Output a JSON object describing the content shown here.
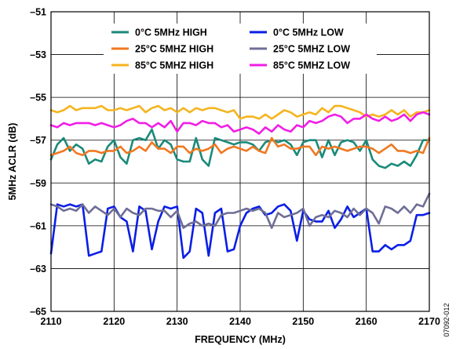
{
  "chart_data": {
    "type": "line",
    "title": "",
    "xlabel": "FREQUENCY (MHz)",
    "ylabel": "5MHz ACLR (dB)",
    "xlim": [
      2110,
      2170
    ],
    "ylim": [
      -65,
      -51
    ],
    "x_ticks": [
      2110,
      2120,
      2130,
      2140,
      2150,
      2160,
      2170
    ],
    "y_ticks": [
      -65,
      -63,
      -61,
      -59,
      -57,
      -55,
      -53,
      -51
    ],
    "x_tick_labels": [
      "2110",
      "2120",
      "2130",
      "2140",
      "2150",
      "2160",
      "2170"
    ],
    "y_tick_labels": [
      "–65",
      "–63",
      "–61",
      "–59",
      "–57",
      "–55",
      "–53",
      "–51"
    ],
    "grid": true,
    "legend_position": "top",
    "figure_id": "07092-012",
    "x": [
      2110,
      2111,
      2112,
      2113,
      2114,
      2115,
      2116,
      2117,
      2118,
      2119,
      2120,
      2121,
      2122,
      2123,
      2124,
      2125,
      2126,
      2127,
      2128,
      2129,
      2130,
      2131,
      2132,
      2133,
      2134,
      2135,
      2136,
      2137,
      2138,
      2139,
      2140,
      2141,
      2142,
      2143,
      2144,
      2145,
      2146,
      2147,
      2148,
      2149,
      2150,
      2151,
      2152,
      2153,
      2154,
      2155,
      2156,
      2157,
      2158,
      2159,
      2160,
      2161,
      2162,
      2163,
      2164,
      2165,
      2166,
      2167,
      2168,
      2169,
      2170
    ],
    "series": [
      {
        "name": "0°C 5MHz HIGH",
        "color": "#1a8a7a",
        "values": [
          -57.9,
          -57.2,
          -56.9,
          -57.5,
          -57.2,
          -57.4,
          -58.1,
          -57.9,
          -58.0,
          -57.3,
          -57.0,
          -57.8,
          -58.1,
          -57.0,
          -56.9,
          -57.0,
          -56.5,
          -57.4,
          -57.0,
          -57.2,
          -57.9,
          -58.0,
          -58.0,
          -56.9,
          -57.9,
          -58.2,
          -56.9,
          -57.0,
          -57.1,
          -57.2,
          -57.1,
          -57.1,
          -57.2,
          -57.5,
          -57.1,
          -57.0,
          -57.1,
          -57.0,
          -57.2,
          -57.7,
          -57.1,
          -57.0,
          -57.0,
          -57.8,
          -57.0,
          -57.7,
          -57.1,
          -57.0,
          -57.1,
          -57.5,
          -57.0,
          -57.9,
          -58.2,
          -58.3,
          -58.1,
          -58.2,
          -58.0,
          -58.2,
          -57.7,
          -57.0,
          -57.0
        ]
      },
      {
        "name": "25°C 5MHZ HIGH",
        "color": "#f07820",
        "values": [
          -57.7,
          -57.6,
          -57.5,
          -57.3,
          -57.6,
          -57.7,
          -57.5,
          -57.5,
          -57.6,
          -57.5,
          -57.5,
          -57.3,
          -57.6,
          -57.5,
          -57.3,
          -57.5,
          -57.1,
          -57.4,
          -57.4,
          -57.6,
          -57.3,
          -57.3,
          -57.6,
          -57.4,
          -57.5,
          -57.4,
          -57.2,
          -57.6,
          -57.4,
          -57.3,
          -57.4,
          -57.5,
          -57.3,
          -57.5,
          -57.6,
          -56.9,
          -57.3,
          -57.2,
          -57.4,
          -57.4,
          -57.3,
          -57.3,
          -57.7,
          -57.3,
          -57.4,
          -57.3,
          -57.4,
          -57.5,
          -57.4,
          -57.3,
          -57.3,
          -57.4,
          -57.6,
          -57.4,
          -57.2,
          -57.5,
          -57.5,
          -57.6,
          -57.5,
          -57.6,
          -56.9
        ]
      },
      {
        "name": "85°C 5MHZ HIGH",
        "color": "#f5b41e",
        "values": [
          -55.6,
          -55.7,
          -55.6,
          -55.4,
          -55.6,
          -55.5,
          -55.5,
          -55.5,
          -55.4,
          -55.6,
          -55.6,
          -55.5,
          -55.6,
          -55.5,
          -55.4,
          -55.7,
          -55.5,
          -55.4,
          -55.6,
          -55.5,
          -55.7,
          -55.5,
          -55.7,
          -55.5,
          -55.6,
          -55.5,
          -55.5,
          -55.6,
          -55.7,
          -55.6,
          -56.0,
          -55.9,
          -55.9,
          -56.0,
          -55.8,
          -56.0,
          -55.8,
          -55.6,
          -55.7,
          -55.9,
          -55.8,
          -55.7,
          -55.8,
          -55.5,
          -55.7,
          -55.4,
          -55.4,
          -55.5,
          -55.6,
          -55.7,
          -55.9,
          -55.8,
          -55.9,
          -55.8,
          -55.6,
          -55.8,
          -55.6,
          -55.9,
          -55.7,
          -55.7,
          -55.6
        ]
      },
      {
        "name": "0°C 5MHz LOW",
        "color": "#0a1ee6",
        "values": [
          -62.3,
          -60.0,
          -60.1,
          -60.0,
          -60.1,
          -60.0,
          -62.4,
          -62.3,
          -62.2,
          -60.2,
          -60.1,
          -60.6,
          -60.8,
          -62.2,
          -60.1,
          -60.3,
          -62.1,
          -60.8,
          -60.1,
          -60.2,
          -60.1,
          -62.5,
          -62.2,
          -60.2,
          -60.4,
          -62.4,
          -60.4,
          -60.2,
          -62.2,
          -62.1,
          -61.0,
          -60.4,
          -60.2,
          -60.1,
          -60.5,
          -60.4,
          -60.1,
          -60.0,
          -60.3,
          -61.7,
          -60.3,
          -60.7,
          -60.8,
          -60.8,
          -60.3,
          -61.1,
          -60.7,
          -60.1,
          -60.6,
          -60.4,
          -60.2,
          -62.2,
          -62.2,
          -61.9,
          -62.1,
          -61.9,
          -61.9,
          -61.7,
          -60.5,
          -60.5,
          -60.4
        ]
      },
      {
        "name": "25°C 5MHZ LOW",
        "color": "#6e6e96",
        "values": [
          -60.0,
          -60.1,
          -60.3,
          -60.2,
          -60.3,
          -60.0,
          -60.4,
          -60.1,
          -60.3,
          -60.5,
          -60.2,
          -60.6,
          -60.2,
          -60.4,
          -60.5,
          -60.2,
          -60.2,
          -60.3,
          -60.3,
          -60.6,
          -60.3,
          -61.1,
          -60.9,
          -60.8,
          -61.0,
          -60.9,
          -61.0,
          -60.5,
          -60.4,
          -60.4,
          -60.3,
          -60.2,
          -60.3,
          -60.2,
          -60.4,
          -61.1,
          -60.4,
          -60.6,
          -60.5,
          -60.4,
          -60.2,
          -61.0,
          -60.6,
          -60.5,
          -60.6,
          -60.3,
          -60.4,
          -60.6,
          -60.2,
          -60.5,
          -60.2,
          -60.4,
          -60.9,
          -60.1,
          -60.2,
          -60.4,
          -60.1,
          -60.4,
          -60.0,
          -60.1,
          -59.5
        ]
      },
      {
        "name": "85°C 5MHZ LOW",
        "color": "#f01ee6",
        "values": [
          -56.3,
          -56.4,
          -56.2,
          -56.3,
          -56.2,
          -56.2,
          -56.2,
          -56.3,
          -56.2,
          -56.3,
          -56.4,
          -56.3,
          -56.1,
          -56.0,
          -56.2,
          -56.2,
          -56.4,
          -56.2,
          -56.4,
          -56.1,
          -56.6,
          -56.2,
          -56.2,
          -56.3,
          -56.1,
          -56.2,
          -56.2,
          -56.4,
          -56.3,
          -56.6,
          -56.5,
          -56.4,
          -56.5,
          -56.7,
          -56.4,
          -56.6,
          -56.3,
          -56.5,
          -56.6,
          -56.3,
          -56.4,
          -56.1,
          -56.2,
          -56.1,
          -55.9,
          -55.8,
          -55.9,
          -56.2,
          -56.0,
          -56.0,
          -55.8,
          -56.0,
          -56.1,
          -55.9,
          -56.1,
          -56.0,
          -55.8,
          -56.1,
          -55.8,
          -55.7,
          -55.8
        ]
      }
    ]
  }
}
